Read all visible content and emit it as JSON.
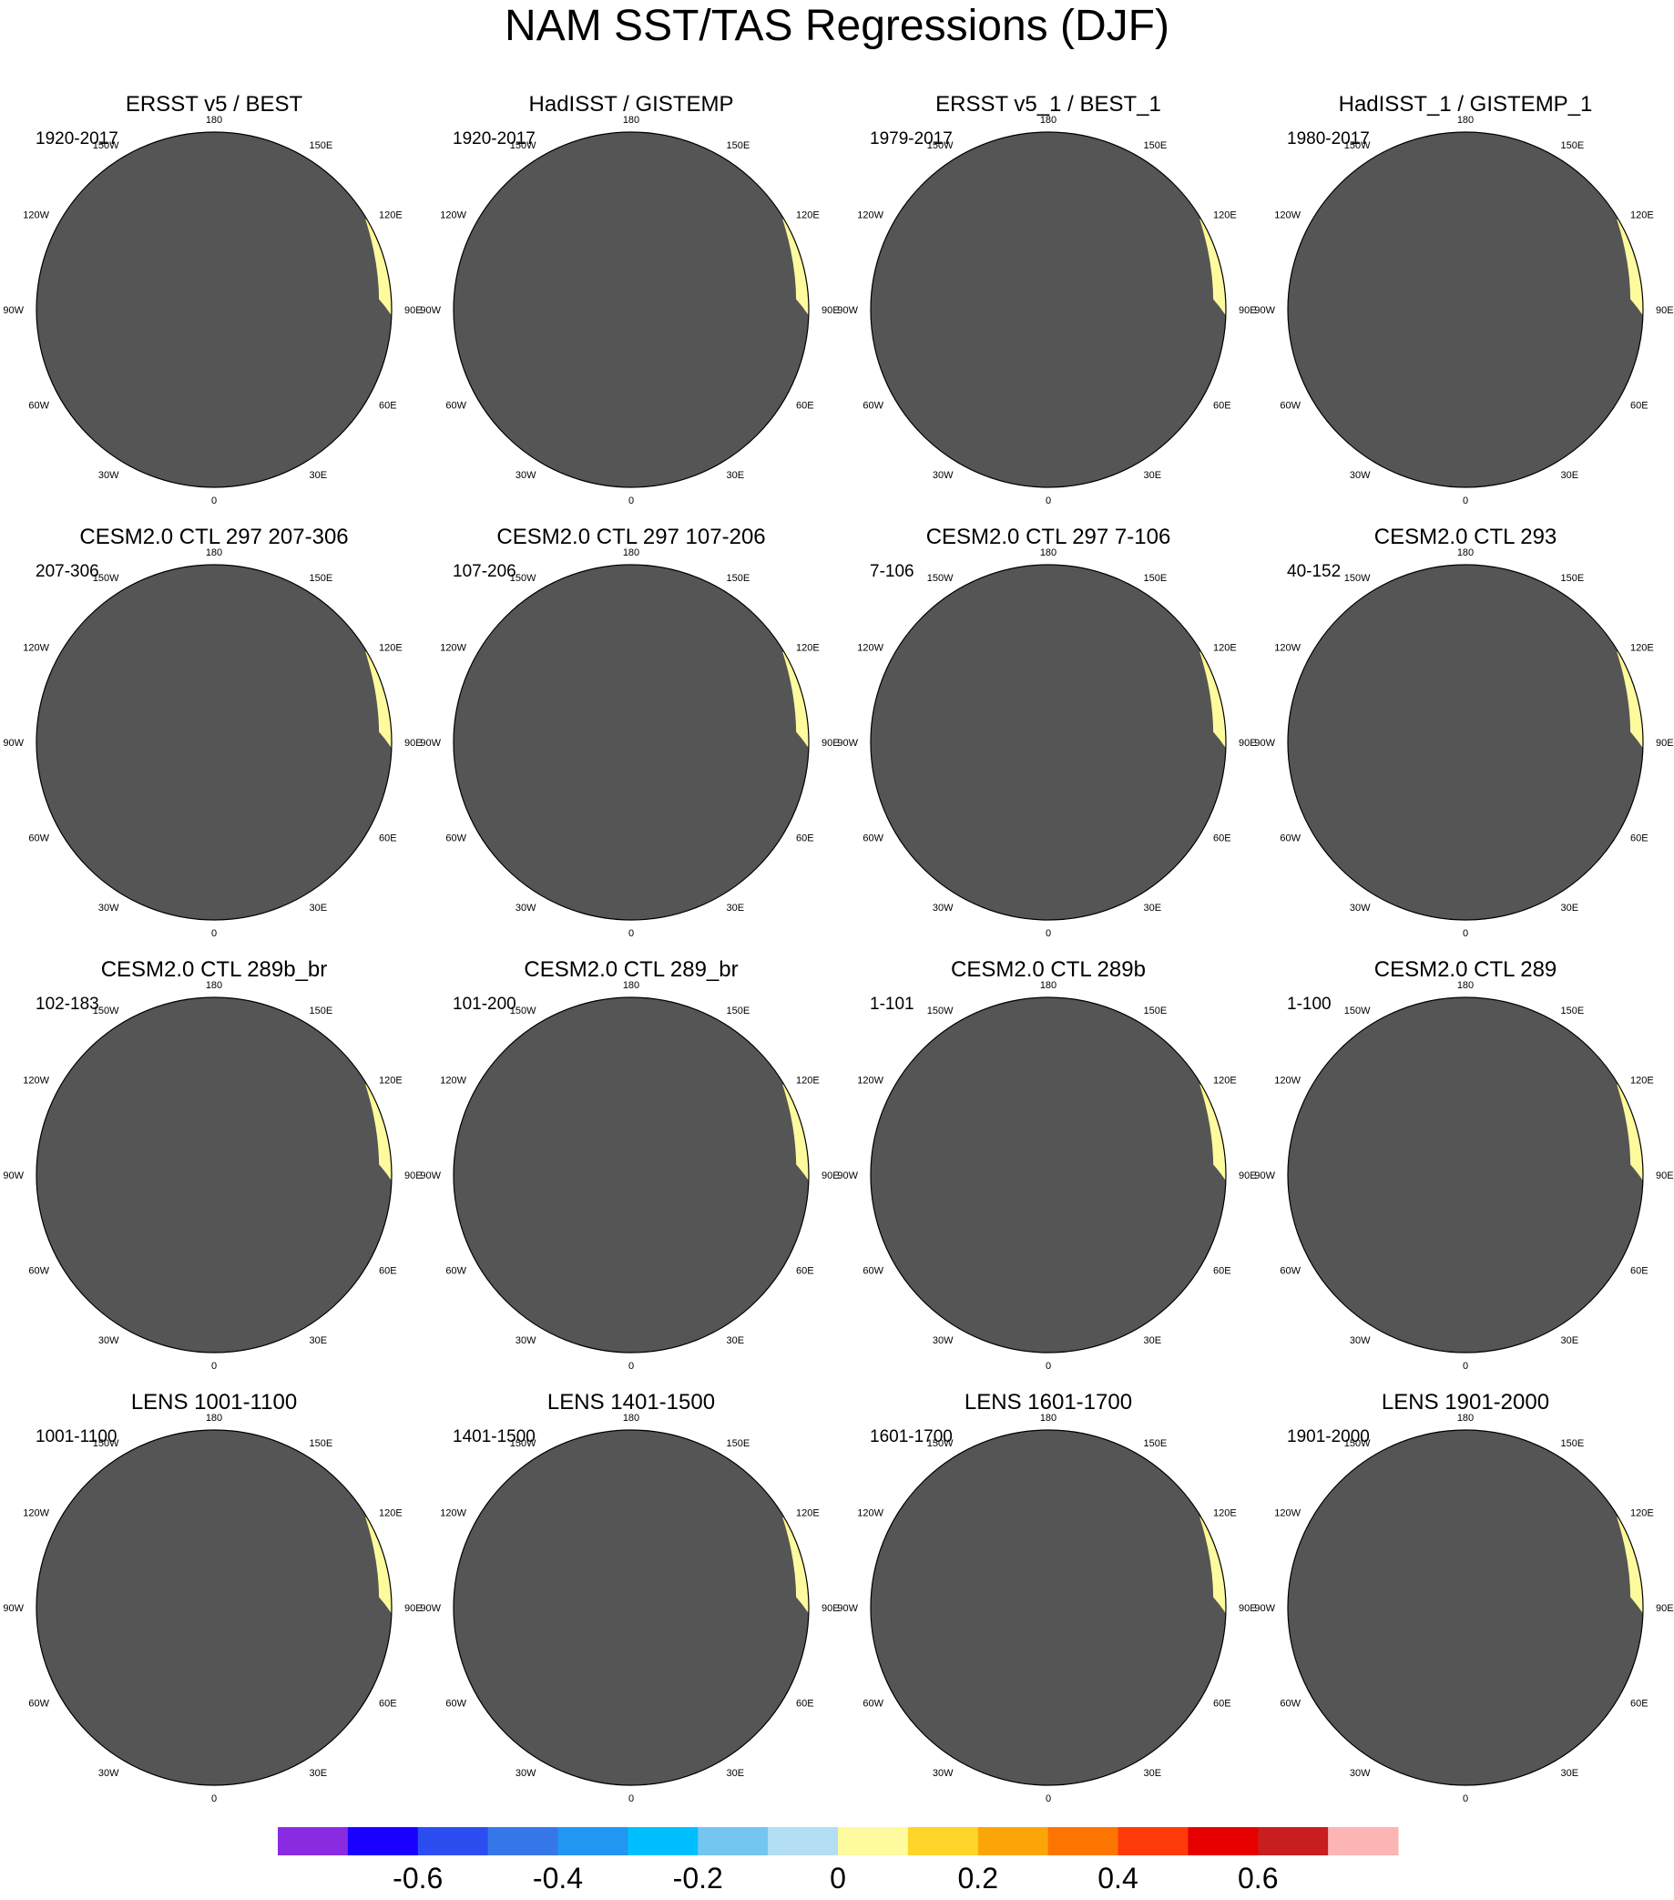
{
  "title": "NAM SST/TAS Regressions (DJF)",
  "lon_labels": [
    "180",
    "150E",
    "120E",
    "90E",
    "60E",
    "30E",
    "0",
    "30W",
    "60W",
    "90W",
    "120W",
    "150W"
  ],
  "panels": [
    {
      "title": "ERSST v5 / BEST",
      "period": "1920-2017"
    },
    {
      "title": "HadISST / GISTEMP",
      "period": "1920-2017"
    },
    {
      "title": "ERSST v5_1 / BEST_1",
      "period": "1979-2017"
    },
    {
      "title": "HadISST_1 / GISTEMP_1",
      "period": "1980-2017"
    },
    {
      "title": "CESM2.0 CTL 297 207-306",
      "period": "207-306"
    },
    {
      "title": "CESM2.0 CTL 297 107-206",
      "period": "107-206"
    },
    {
      "title": "CESM2.0 CTL 297 7-106",
      "period": "7-106"
    },
    {
      "title": "CESM2.0 CTL 293",
      "period": "40-152"
    },
    {
      "title": "CESM2.0 CTL 289b_br",
      "period": "102-183"
    },
    {
      "title": "CESM2.0 CTL 289_br",
      "period": "101-200"
    },
    {
      "title": "CESM2.0 CTL 289b",
      "period": "1-101"
    },
    {
      "title": "CESM2.0 CTL 289",
      "period": "1-100"
    },
    {
      "title": "LENS 1001-1100",
      "period": "1001-1100"
    },
    {
      "title": "LENS 1401-1500",
      "period": "1401-1500"
    },
    {
      "title": "LENS 1601-1700",
      "period": "1601-1700"
    },
    {
      "title": "LENS 1901-2000",
      "period": "1901-2000"
    }
  ],
  "colorbar": {
    "colors": [
      "#8a2be2",
      "#1a00ff",
      "#2c4ef0",
      "#3577e8",
      "#2396f2",
      "#00bfff",
      "#74c6f0",
      "#b3def3",
      "#fdfb9e",
      "#fdd52b",
      "#fca50a",
      "#fc7500",
      "#fe3a0a",
      "#e60000",
      "#c81e1e",
      "#fcb5b5"
    ],
    "labels": [
      "-0.6",
      "-0.4",
      "-0.2",
      "0",
      "0.2",
      "0.4",
      "0.6"
    ]
  }
}
